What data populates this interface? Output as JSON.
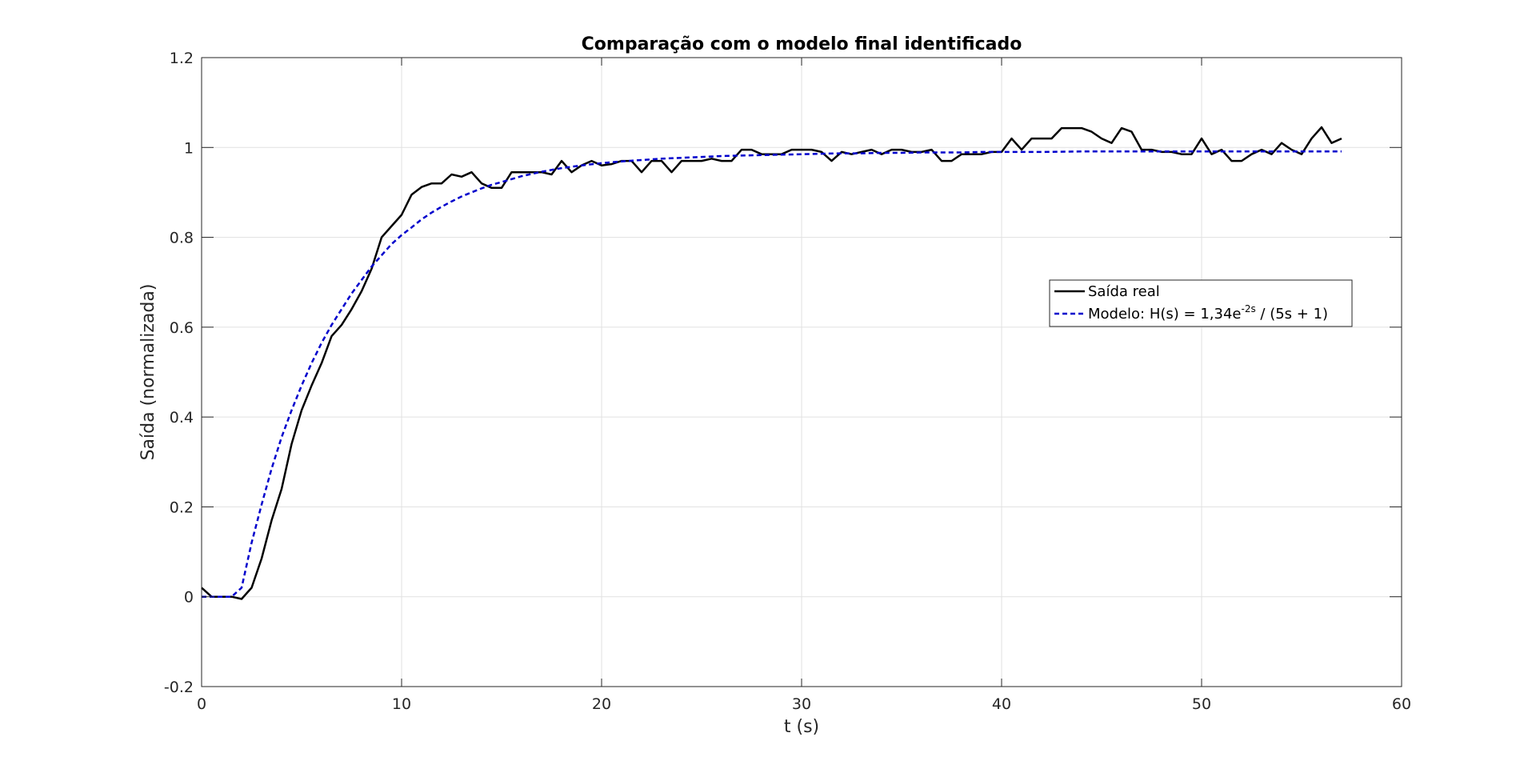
{
  "chart_data": {
    "type": "line",
    "title": "Comparação com o modelo final identificado",
    "xlabel": "t (s)",
    "ylabel": "Saída (normalizada)",
    "xlim": [
      0,
      60
    ],
    "ylim": [
      -0.2,
      1.2
    ],
    "xticks": [
      0,
      10,
      20,
      30,
      40,
      50,
      60
    ],
    "yticks": [
      -0.2,
      0,
      0.2,
      0.4,
      0.6,
      0.8,
      1.0,
      1.2
    ],
    "xtick_labels": [
      "0",
      "10",
      "20",
      "30",
      "40",
      "50",
      "60"
    ],
    "ytick_labels": [
      "-0.2",
      "0",
      "0.2",
      "0.4",
      "0.6",
      "0.8",
      "1",
      "1.2"
    ],
    "grid": true,
    "legend_position": "right, upper-middle",
    "legend": {
      "real_label": "Saída real",
      "model_prefix": "Modelo: H(s) = 1,34e",
      "model_exponent": "-2s",
      "model_suffix": " / (5s + 1)"
    },
    "series": [
      {
        "name": "Saída real",
        "color": "#000000",
        "style": "solid",
        "x": [
          0,
          0.5,
          1,
          1.5,
          2,
          2.5,
          3,
          3.5,
          4,
          4.5,
          5,
          5.5,
          6,
          6.5,
          7,
          7.5,
          8,
          8.5,
          9,
          9.5,
          10,
          10.5,
          11,
          11.5,
          12,
          12.5,
          13,
          13.5,
          14,
          14.5,
          15,
          15.5,
          16,
          16.5,
          17,
          17.5,
          18,
          18.5,
          19,
          19.5,
          20,
          20.5,
          21,
          21.5,
          22,
          22.5,
          23,
          23.5,
          24,
          24.5,
          25,
          25.5,
          26,
          26.5,
          27,
          27.5,
          28,
          28.5,
          29,
          29.5,
          30,
          30.5,
          31,
          31.5,
          32,
          32.5,
          33,
          33.5,
          34,
          34.5,
          35,
          35.5,
          36,
          36.5,
          37,
          37.5,
          38,
          38.5,
          39,
          39.5,
          40,
          40.5,
          41,
          41.5,
          42,
          42.5,
          43,
          43.5,
          44,
          44.5,
          45,
          45.5,
          46,
          46.5,
          47,
          47.5,
          48,
          48.5,
          49,
          49.5,
          50,
          50.5,
          51,
          51.5,
          52,
          52.5,
          53,
          53.5,
          54,
          54.5,
          55,
          55.5,
          56,
          56.5,
          57
        ],
        "y": [
          0.02,
          0.0,
          0.0,
          0.0,
          -0.005,
          0.02,
          0.085,
          0.17,
          0.24,
          0.34,
          0.415,
          0.47,
          0.52,
          0.58,
          0.605,
          0.64,
          0.68,
          0.73,
          0.8,
          0.825,
          0.85,
          0.895,
          0.912,
          0.92,
          0.92,
          0.94,
          0.935,
          0.945,
          0.92,
          0.91,
          0.91,
          0.945,
          0.945,
          0.945,
          0.945,
          0.94,
          0.97,
          0.945,
          0.96,
          0.97,
          0.96,
          0.963,
          0.97,
          0.97,
          0.945,
          0.97,
          0.97,
          0.945,
          0.97,
          0.97,
          0.97,
          0.975,
          0.97,
          0.97,
          0.995,
          0.995,
          0.985,
          0.985,
          0.985,
          0.995,
          0.995,
          0.995,
          0.99,
          0.97,
          0.99,
          0.985,
          0.99,
          0.995,
          0.985,
          0.995,
          0.995,
          0.99,
          0.99,
          0.995,
          0.97,
          0.97,
          0.985,
          0.985,
          0.985,
          0.99,
          0.99,
          1.02,
          0.995,
          1.02,
          1.02,
          1.02,
          1.043,
          1.043,
          1.043,
          1.035,
          1.02,
          1.01,
          1.043,
          1.035,
          0.995,
          0.995,
          0.99,
          0.99,
          0.985,
          0.985,
          1.02,
          0.985,
          0.995,
          0.97,
          0.97,
          0.985,
          0.995,
          0.985,
          1.01,
          0.995,
          0.985,
          1.02,
          1.045,
          1.01,
          1.02
        ]
      },
      {
        "name": "Modelo: H(s) = 1,34e^{-2s} / (5s + 1)",
        "color": "#0000CC",
        "style": "dashed",
        "x": [
          0,
          0.5,
          1,
          1.5,
          2,
          2.5,
          3,
          3.5,
          4,
          4.5,
          5,
          5.5,
          6,
          6.5,
          7,
          7.5,
          8,
          8.5,
          9,
          9.5,
          10,
          10.5,
          11,
          11.5,
          12,
          12.5,
          13,
          13.5,
          14,
          14.5,
          15,
          16,
          17,
          18,
          19,
          20,
          21,
          22,
          23,
          24,
          25,
          26,
          27,
          28,
          29,
          30,
          31,
          32,
          33,
          34,
          35,
          36,
          37,
          38,
          39,
          40,
          42,
          44,
          46,
          48,
          50,
          52,
          54,
          56,
          57
        ],
        "y": [
          0,
          0,
          0,
          0,
          0.02,
          0.12,
          0.205,
          0.285,
          0.355,
          0.415,
          0.47,
          0.52,
          0.565,
          0.605,
          0.64,
          0.675,
          0.705,
          0.735,
          0.76,
          0.785,
          0.805,
          0.822,
          0.84,
          0.855,
          0.868,
          0.88,
          0.891,
          0.9,
          0.909,
          0.917,
          0.923,
          0.936,
          0.946,
          0.954,
          0.96,
          0.965,
          0.969,
          0.972,
          0.975,
          0.977,
          0.979,
          0.981,
          0.982,
          0.983,
          0.984,
          0.985,
          0.986,
          0.987,
          0.987,
          0.988,
          0.988,
          0.989,
          0.989,
          0.989,
          0.99,
          0.99,
          0.99,
          0.991,
          0.991,
          0.991,
          0.991,
          0.991,
          0.991,
          0.991,
          0.991
        ]
      }
    ]
  }
}
